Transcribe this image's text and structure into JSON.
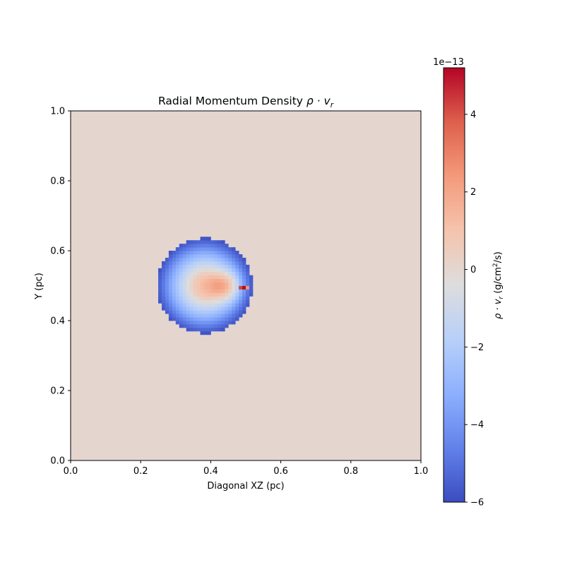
{
  "chart_data": {
    "type": "heatmap",
    "title_prefix": "Radial Momentum Density ",
    "title_math": "ρ · v",
    "title_sub": "r",
    "xlabel": "Diagonal XZ (pc)",
    "ylabel": "Y (pc)",
    "xlim": [
      0.0,
      1.0
    ],
    "ylim": [
      0.0,
      1.0
    ],
    "xticks": [
      "0.0",
      "0.2",
      "0.4",
      "0.6",
      "0.8",
      "1.0"
    ],
    "yticks": [
      "0.0",
      "0.2",
      "0.4",
      "0.6",
      "0.8",
      "1.0"
    ],
    "grid": false,
    "colormap": "coolwarm",
    "background_value": 0.0,
    "sphere": {
      "center": [
        0.382,
        0.5
      ],
      "radius": 0.136,
      "cell_size": 0.01,
      "radial_profile_1e13": [
        {
          "r": 0.0,
          "v": 1.3
        },
        {
          "r": 0.03,
          "v": 0.6
        },
        {
          "r": 0.06,
          "v": -1.2
        },
        {
          "r": 0.09,
          "v": -3.0
        },
        {
          "r": 0.12,
          "v": -5.0
        },
        {
          "r": 0.136,
          "v": -5.8
        }
      ],
      "hot_region": {
        "center": [
          0.445,
          0.5
        ],
        "sigma": 0.03,
        "peak_1e13": 3.0
      },
      "jet_cells": [
        {
          "x": 0.485,
          "y": 0.5,
          "v": 4.2
        },
        {
          "x": 0.495,
          "y": 0.5,
          "v": 5.1
        },
        {
          "x": 0.505,
          "y": 0.5,
          "v": 2.5
        }
      ]
    },
    "colorbar": {
      "label_prefix": "ρ · v",
      "label_sub": "r",
      "label_units": " (g/cm",
      "label_units_sup": "2",
      "label_units_end": "/s)",
      "offset_text": "1e−13",
      "vmin": -6.0,
      "vmax": 5.2,
      "ticks": [
        {
          "value": -6,
          "label": "−6"
        },
        {
          "value": -4,
          "label": "−4"
        },
        {
          "value": -2,
          "label": "−2"
        },
        {
          "value": 0,
          "label": "0"
        },
        {
          "value": 2,
          "label": "2"
        },
        {
          "value": 4,
          "label": "4"
        }
      ]
    }
  }
}
